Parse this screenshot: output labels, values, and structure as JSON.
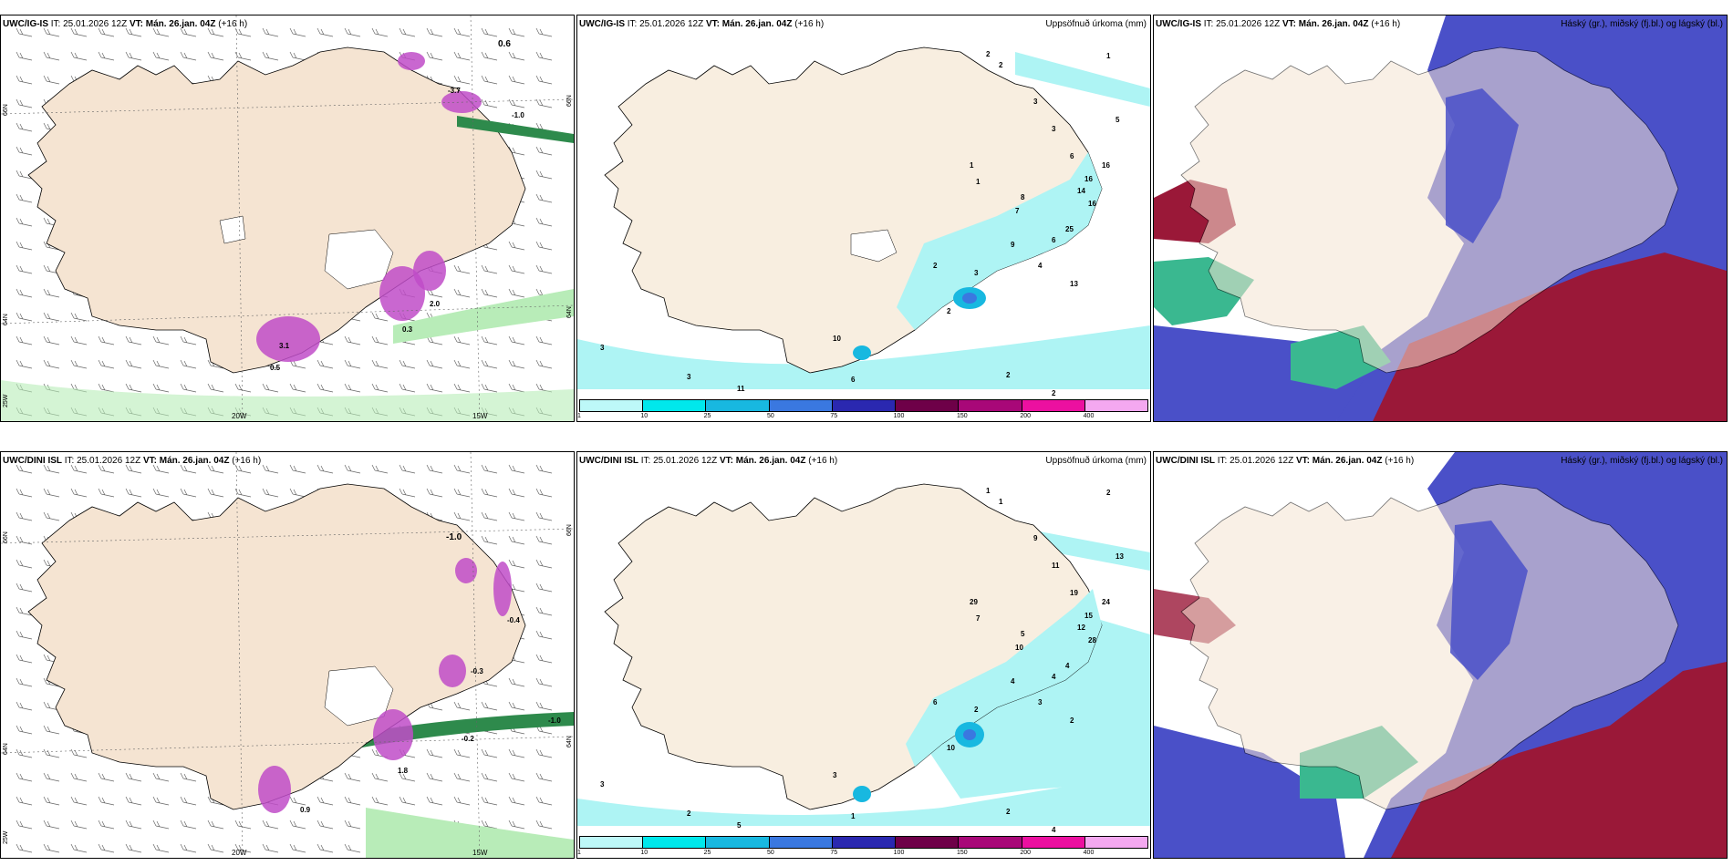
{
  "panels": [
    {
      "model": "UWC/IG-IS",
      "it": "IT: 25.01.2026 12Z",
      "vt_label": "VT:",
      "vt": "Mán. 26.jan. 04Z",
      "lead": "(+16 h)",
      "right_title": ""
    },
    {
      "model": "UWC/IG-IS",
      "it": "IT: 25.01.2026 12Z",
      "vt_label": "VT:",
      "vt": "Mán. 26.jan. 04Z",
      "lead": "(+16 h)",
      "right_title": "Uppsöfnuð úrkoma (mm)"
    },
    {
      "model": "UWC/IG-IS",
      "it": "IT: 25.01.2026 12Z",
      "vt_label": "VT:",
      "vt": "Mán. 26.jan. 04Z",
      "lead": "(+16 h)",
      "right_title": "Háský (gr.), miðský (fj.bl.) og lágský (bl.)"
    },
    {
      "model": "UWC/DINI ISL",
      "it": "IT: 25.01.2026 12Z",
      "vt_label": "VT:",
      "vt": "Mán. 26.jan. 04Z",
      "lead": "(+16 h)",
      "right_title": ""
    },
    {
      "model": "UWC/DINI ISL",
      "it": "IT: 25.01.2026 12Z",
      "vt_label": "VT:",
      "vt": "Mán. 26.jan. 04Z",
      "lead": "(+16 h)",
      "right_title": "Uppsöfnuð úrkoma (mm)"
    },
    {
      "model": "UWC/DINI ISL",
      "it": "IT: 25.01.2026 12Z",
      "vt_label": "VT:",
      "vt": "Mán. 26.jan. 04Z",
      "lead": "(+16 h)",
      "right_title": "Háský (gr.), miðský (fj.bl.) og lágský (bl.)"
    }
  ],
  "axes": {
    "lat_66": "66N",
    "lat_64": "64N",
    "lon_25": "25W",
    "lon_20": "20W",
    "lon_15": "15W"
  },
  "wind_labels": {
    "top": [
      "0.6",
      "-3.7",
      "-1.0",
      "3.1",
      "0.3",
      "0.5",
      "2.0"
    ],
    "bottom": [
      "-1.0",
      "-0.2",
      "-1.0",
      "1.8",
      "0.9",
      "-0.3",
      "-0.4"
    ]
  },
  "precip_legend": {
    "ticks": [
      "1",
      "10",
      "25",
      "50",
      "75",
      "100",
      "150",
      "200",
      "400"
    ],
    "colors": [
      "#bdf8f8",
      "#00e8ec",
      "#18b8e0",
      "#3a78e0",
      "#2a28b0",
      "#6e0048",
      "#a80878",
      "#ec10a0",
      "#f4a8f0"
    ]
  },
  "precip_numbers": {
    "top": [
      "2",
      "2",
      "1",
      "3",
      "5",
      "3",
      "6",
      "16",
      "16",
      "14",
      "16",
      "1",
      "1",
      "8",
      "7",
      "25",
      "6",
      "9",
      "4",
      "13",
      "10",
      "6",
      "2",
      "2",
      "3",
      "2",
      "2",
      "3",
      "3",
      "11"
    ],
    "bottom": [
      "1",
      "1",
      "2",
      "9",
      "13",
      "11",
      "19",
      "24",
      "15",
      "12",
      "28",
      "29",
      "7",
      "5",
      "10",
      "4",
      "4",
      "4",
      "3",
      "2",
      "3",
      "1",
      "2",
      "4",
      "2",
      "10",
      "6",
      "3",
      "2",
      "5"
    ]
  },
  "colors": {
    "land": "#f8eee0",
    "sea": "#ffffff",
    "cyan": "#aef4f4",
    "wind_green": "#b8ecb8",
    "magenta": "#c04cc8",
    "cloud_high": "#4a50c8",
    "cloud_low": "#9a1838",
    "cloud_mid": "#3ab890"
  }
}
